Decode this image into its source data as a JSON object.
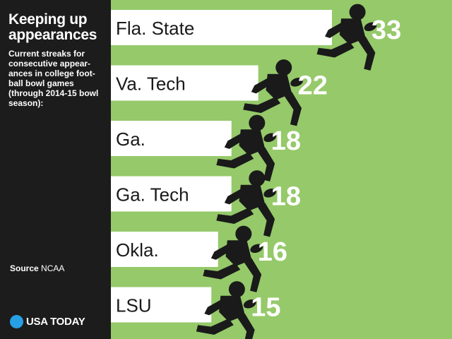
{
  "sidebar": {
    "title": "Keeping up appearances",
    "subtitle": "Current streaks for consecutive appear-ances in college foot-ball bowl games (through 2014-15 bowl season):",
    "source_label": "Source",
    "source_value": "NCAA",
    "logo_text": "USA TODAY"
  },
  "colors": {
    "background": "#95c96a",
    "bar": "#ffffff",
    "sidebar": "#1c1c1c",
    "figure": "#1a1a1a",
    "logo_dot": "#27a0e5"
  },
  "chart_data": {
    "type": "bar",
    "orientation": "horizontal",
    "title": "Keeping up appearances",
    "subtitle": "Current streaks for consecutive appearances in college football bowl games (through 2014-15 bowl season)",
    "categories": [
      "Fla. State",
      "Va. Tech",
      "Ga.",
      "Ga. Tech",
      "Okla.",
      "LSU"
    ],
    "values": [
      33,
      22,
      18,
      18,
      16,
      15
    ],
    "xlim": [
      0,
      33
    ],
    "xlabel": "",
    "ylabel": "",
    "grid": false,
    "icon": "football-player-icon"
  }
}
